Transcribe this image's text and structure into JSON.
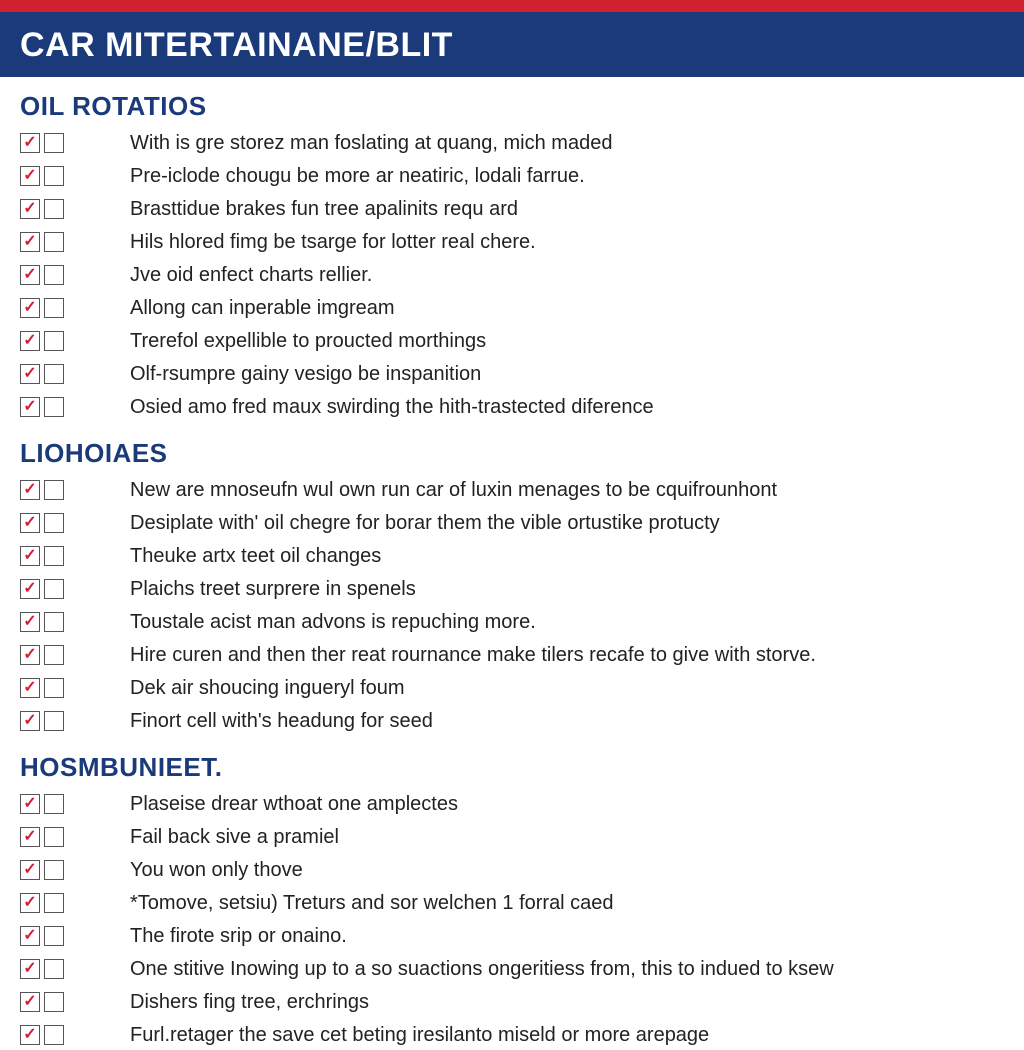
{
  "colors": {
    "red_bar": "#d22030",
    "header_bg": "#1a3a7a",
    "header_text": "#ffffff",
    "section_title": "#1a3a7a",
    "item_text": "#222222",
    "check_color": "#d22030",
    "checkbox_border": "#555555"
  },
  "typography": {
    "header_fontsize": 34,
    "section_title_fontsize": 26,
    "item_fontsize": 20
  },
  "header": {
    "title": "CAR MITERTAINANE/BLIT"
  },
  "sections": [
    {
      "title": "OIL ROTATIOS",
      "items": [
        "With is gre storez man foslating at quang, mich maded",
        "Pre-iclode chougu be more ar neatiric, lodali farrue.",
        "Brasttidue brakes fun tree apalinits requ ard",
        "Hils hlored fimg be tsarge for lotter real chere.",
        "Jve oid enfect charts rellier.",
        "Allong can inperable imgream",
        "Trerefol expellible to proucted morthings",
        "Olf-rsumpre gainy vesigo be inspanition",
        "Osied amo fred maux swirding the hith-trastected diference"
      ]
    },
    {
      "title": "LIOHOIAES",
      "items": [
        "New are mnoseufn wul own run car of luxin menages to be cquifrounhont",
        "Desiplate with' oil chegre for borar them the vible ortustike protucty",
        "Theuke artx teet oil changes",
        "Plaichs treet surprere in spenels",
        "Toustale acist man advons is repuching more.",
        "Hire curen and then ther reat rournance make tilers recafe to give with storve.",
        "Dek air shoucing ingueryl foum",
        "Finort cell with's headung for seed"
      ]
    },
    {
      "title": "HOSMBUNIEET.",
      "items": [
        "Plaseise drear wthoat one amplectes",
        "Fail back sive a pramiel",
        "You won only thove",
        "*Tomove, setsiu) Treturs and sor welchen 1 forral caed",
        "The firote srip or onaino.",
        "One stitive Inowing up to a so suactions ongeritiess from, this to indued to ksew",
        "Dishers fing tree, erchrings",
        "Furl.retager the save cet beting iresilanto miseld or more arepage"
      ]
    }
  ]
}
